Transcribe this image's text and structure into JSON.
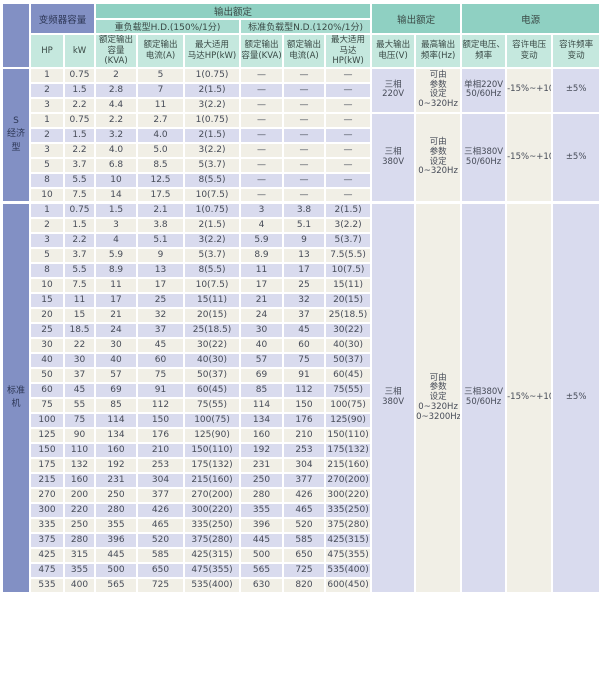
{
  "colors": {
    "blue": "#8290c4",
    "teal1": "#8fd0c2",
    "teal2": "#a9dcd0",
    "teal3": "#c5e8de",
    "cream": "#f1efe6",
    "lav": "#d9dbee"
  },
  "table": {
    "corner": "",
    "capacity_group": "变频器容量",
    "output_rating_group": "输出额定",
    "hd_group": "重负载型H.D.(150%/1分)",
    "nd_group": "标准负载型N.D.(120%/1分)",
    "output_group_right": "输出额定",
    "power_group": "电源",
    "columns": {
      "hp": "HP",
      "kw": "kW",
      "hd_capacity": "额定输出\n容量(KVA)",
      "hd_current": "额定输出\n电流(A)",
      "hd_motor": "最大适用\n马达HP(kW)",
      "nd_capacity": "额定输出\n容量(KVA)",
      "nd_current": "额定输出\n电流(A)",
      "nd_motor": "最大适用\n马达HP(kW)",
      "max_voltage": "最大输出\n电压(V)",
      "max_freq": "最高输出\n频率(Hz)",
      "rated_voltage_freq": "额定电压、\n频率",
      "voltage_fluct": "容许电压\n变动",
      "freq_fluct": "容许频率\n变动"
    },
    "sections": [
      {
        "label": "S\n经济型",
        "shading": "triplet",
        "blocks": [
          {
            "voltage": "三相\n220V",
            "frequency": "可由\n参数\n设定\n0~320Hz",
            "supply": "单相220V\n50/60Hz",
            "voltage_fluct": "-15%~+10%",
            "freq_fluct": "±5%",
            "rows": [
              [
                "1",
                "0.75",
                "2",
                "5",
                "1(0.75)",
                "—",
                "—",
                "—"
              ],
              [
                "2",
                "1.5",
                "2.8",
                "7",
                "2(1.5)",
                "—",
                "—",
                "—"
              ],
              [
                "3",
                "2.2",
                "4.4",
                "11",
                "3(2.2)",
                "—",
                "—",
                "—"
              ]
            ]
          },
          {
            "voltage": "三相\n380V",
            "frequency": "可由\n参数\n设定\n0~320Hz",
            "supply": "三相380V\n50/60Hz",
            "voltage_fluct": "-15%~+10%",
            "freq_fluct": "±5%",
            "rows": [
              [
                "1",
                "0.75",
                "2.2",
                "2.7",
                "1(0.75)",
                "—",
                "—",
                "—"
              ],
              [
                "2",
                "1.5",
                "3.2",
                "4.0",
                "2(1.5)",
                "—",
                "—",
                "—"
              ],
              [
                "3",
                "2.2",
                "4.0",
                "5.0",
                "3(2.2)",
                "—",
                "—",
                "—"
              ],
              [
                "5",
                "3.7",
                "6.8",
                "8.5",
                "5(3.7)",
                "—",
                "—",
                "—"
              ],
              [
                "8",
                "5.5",
                "10",
                "12.5",
                "8(5.5)",
                "—",
                "—",
                "—"
              ],
              [
                "10",
                "7.5",
                "14",
                "17.5",
                "10(7.5)",
                "—",
                "—",
                "—"
              ]
            ]
          }
        ]
      },
      {
        "label": "标准机",
        "shading": "alternate",
        "blocks": [
          {
            "voltage": "三相\n380V",
            "frequency": "可由\n参数\n设定\n0~320Hz\n0~3200Hz",
            "supply": "三相380V\n50/60Hz",
            "voltage_fluct": "-15%~+10%",
            "freq_fluct": "±5%",
            "rows": [
              [
                "1",
                "0.75",
                "1.5",
                "2.1",
                "1(0.75)",
                "3",
                "3.8",
                "2(1.5)"
              ],
              [
                "2",
                "1.5",
                "3",
                "3.8",
                "2(1.5)",
                "4",
                "5.1",
                "3(2.2)"
              ],
              [
                "3",
                "2.2",
                "4",
                "5.1",
                "3(2.2)",
                "5.9",
                "9",
                "5(3.7)"
              ],
              [
                "5",
                "3.7",
                "5.9",
                "9",
                "5(3.7)",
                "8.9",
                "13",
                "7.5(5.5)"
              ],
              [
                "8",
                "5.5",
                "8.9",
                "13",
                "8(5.5)",
                "11",
                "17",
                "10(7.5)"
              ],
              [
                "10",
                "7.5",
                "11",
                "17",
                "10(7.5)",
                "17",
                "25",
                "15(11)"
              ],
              [
                "15",
                "11",
                "17",
                "25",
                "15(11)",
                "21",
                "32",
                "20(15)"
              ],
              [
                "20",
                "15",
                "21",
                "32",
                "20(15)",
                "24",
                "37",
                "25(18.5)"
              ],
              [
                "25",
                "18.5",
                "24",
                "37",
                "25(18.5)",
                "30",
                "45",
                "30(22)"
              ],
              [
                "30",
                "22",
                "30",
                "45",
                "30(22)",
                "40",
                "60",
                "40(30)"
              ],
              [
                "40",
                "30",
                "40",
                "60",
                "40(30)",
                "57",
                "75",
                "50(37)"
              ],
              [
                "50",
                "37",
                "57",
                "75",
                "50(37)",
                "69",
                "91",
                "60(45)"
              ],
              [
                "60",
                "45",
                "69",
                "91",
                "60(45)",
                "85",
                "112",
                "75(55)"
              ],
              [
                "75",
                "55",
                "85",
                "112",
                "75(55)",
                "114",
                "150",
                "100(75)"
              ],
              [
                "100",
                "75",
                "114",
                "150",
                "100(75)",
                "134",
                "176",
                "125(90)"
              ],
              [
                "125",
                "90",
                "134",
                "176",
                "125(90)",
                "160",
                "210",
                "150(110)"
              ],
              [
                "150",
                "110",
                "160",
                "210",
                "150(110)",
                "192",
                "253",
                "175(132)"
              ],
              [
                "175",
                "132",
                "192",
                "253",
                "175(132)",
                "231",
                "304",
                "215(160)"
              ],
              [
                "215",
                "160",
                "231",
                "304",
                "215(160)",
                "250",
                "377",
                "270(200)"
              ],
              [
                "270",
                "200",
                "250",
                "377",
                "270(200)",
                "280",
                "426",
                "300(220)"
              ],
              [
                "300",
                "220",
                "280",
                "426",
                "300(220)",
                "355",
                "465",
                "335(250)"
              ],
              [
                "335",
                "250",
                "355",
                "465",
                "335(250)",
                "396",
                "520",
                "375(280)"
              ],
              [
                "375",
                "280",
                "396",
                "520",
                "375(280)",
                "445",
                "585",
                "425(315)"
              ],
              [
                "425",
                "315",
                "445",
                "585",
                "425(315)",
                "500",
                "650",
                "475(355)"
              ],
              [
                "475",
                "355",
                "500",
                "650",
                "475(355)",
                "565",
                "725",
                "535(400)"
              ],
              [
                "535",
                "400",
                "565",
                "725",
                "535(400)",
                "630",
                "820",
                "600(450)"
              ]
            ]
          }
        ]
      }
    ]
  }
}
